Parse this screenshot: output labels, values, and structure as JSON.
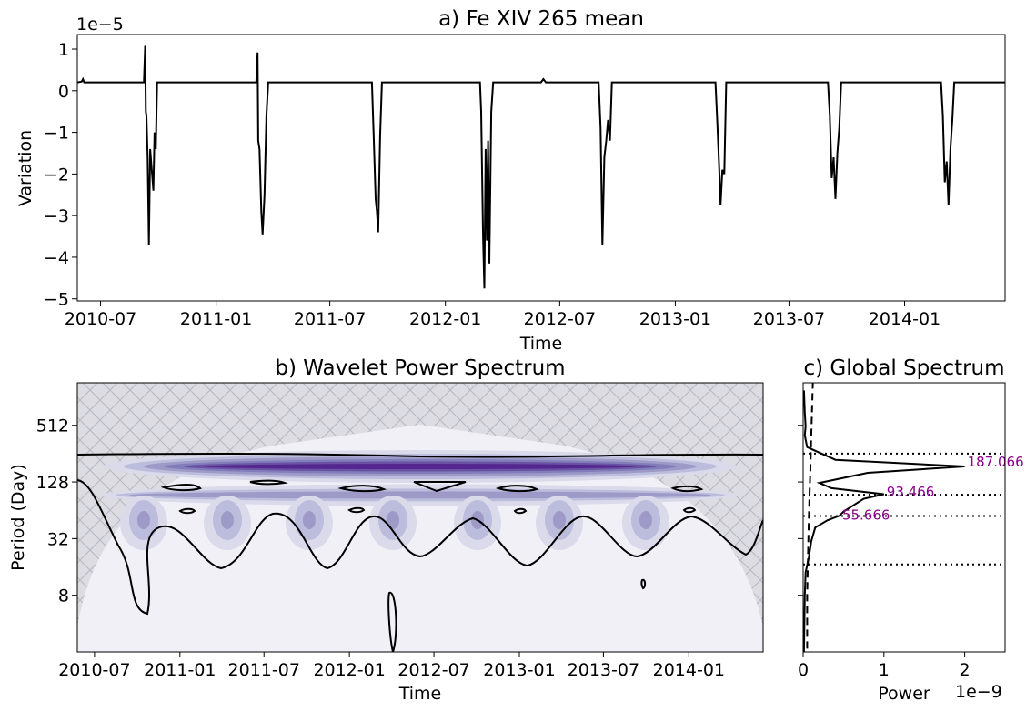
{
  "chart_data": [
    {
      "type": "line",
      "title": "a) Fe XIV 265 mean",
      "xlabel": "Time",
      "ylabel": "Variation",
      "y_offset_text": "1e−5",
      "x_ticks": [
        "2010-07",
        "2011-01",
        "2011-07",
        "2012-01",
        "2012-07",
        "2013-01",
        "2013-07",
        "2014-01"
      ],
      "y_ticks": [
        "1",
        "0",
        "−1",
        "−2",
        "−3",
        "−4",
        "−5"
      ],
      "x_range": [
        "2010-05-25",
        "2014-06-10"
      ],
      "y_range": [
        -5.05,
        1.35
      ],
      "baseline": 0.2,
      "series": [
        {
          "color": "#000000",
          "points": [
            [
              "2010-05-25",
              0.2
            ],
            [
              "2010-06-01",
              0.22
            ],
            [
              "2010-06-03",
              0.28
            ],
            [
              "2010-06-05",
              0.2
            ],
            [
              "2010-09-08",
              0.2
            ],
            [
              "2010-09-10",
              1.08
            ],
            [
              "2010-09-11",
              -0.5
            ],
            [
              "2010-09-12",
              -0.6
            ],
            [
              "2010-09-14",
              -1.6
            ],
            [
              "2010-09-16",
              -3.7
            ],
            [
              "2010-09-18",
              -1.4
            ],
            [
              "2010-09-21",
              -2.0
            ],
            [
              "2010-09-23",
              -2.4
            ],
            [
              "2010-09-25",
              -1.0
            ],
            [
              "2010-09-27",
              -1.4
            ],
            [
              "2010-09-29",
              0.2
            ],
            [
              "2011-03-06",
              0.2
            ],
            [
              "2011-03-08",
              0.92
            ],
            [
              "2011-03-09",
              -1.2
            ],
            [
              "2011-03-11",
              -1.4
            ],
            [
              "2011-03-14",
              -2.9
            ],
            [
              "2011-03-16",
              -3.45
            ],
            [
              "2011-03-19",
              -2.5
            ],
            [
              "2011-03-22",
              -0.6
            ],
            [
              "2011-03-25",
              0.2
            ],
            [
              "2011-09-06",
              0.2
            ],
            [
              "2011-09-09",
              -1.2
            ],
            [
              "2011-09-12",
              -2.6
            ],
            [
              "2011-09-14",
              -2.9
            ],
            [
              "2011-09-16",
              -3.4
            ],
            [
              "2011-09-19",
              -1.1
            ],
            [
              "2011-09-22",
              0.2
            ],
            [
              "2012-02-25",
              0.2
            ],
            [
              "2012-02-27",
              -0.5
            ],
            [
              "2012-03-01",
              -3.5
            ],
            [
              "2012-03-03",
              -4.75
            ],
            [
              "2012-03-05",
              -1.4
            ],
            [
              "2012-03-07",
              -3.6
            ],
            [
              "2012-03-09",
              -1.2
            ],
            [
              "2012-03-11",
              -4.15
            ],
            [
              "2012-03-14",
              -0.5
            ],
            [
              "2012-03-17",
              0.2
            ],
            [
              "2012-06-01",
              0.2
            ],
            [
              "2012-06-05",
              0.28
            ],
            [
              "2012-06-09",
              0.2
            ],
            [
              "2012-09-01",
              0.2
            ],
            [
              "2012-09-04",
              -0.9
            ],
            [
              "2012-09-07",
              -3.7
            ],
            [
              "2012-09-10",
              -1.6
            ],
            [
              "2012-09-13",
              -1.2
            ],
            [
              "2012-09-16",
              -0.7
            ],
            [
              "2012-09-19",
              -1.2
            ],
            [
              "2012-09-22",
              0.2
            ],
            [
              "2013-03-06",
              0.2
            ],
            [
              "2013-03-09",
              -0.8
            ],
            [
              "2013-03-12",
              -1.9
            ],
            [
              "2013-03-14",
              -2.75
            ],
            [
              "2013-03-17",
              -1.9
            ],
            [
              "2013-03-20",
              -2.0
            ],
            [
              "2013-03-23",
              0.2
            ],
            [
              "2013-09-01",
              0.2
            ],
            [
              "2013-09-04",
              -0.6
            ],
            [
              "2013-09-07",
              -2.1
            ],
            [
              "2013-09-10",
              -1.6
            ],
            [
              "2013-09-13",
              -2.6
            ],
            [
              "2013-09-16",
              -1.5
            ],
            [
              "2013-09-19",
              -0.9
            ],
            [
              "2013-09-22",
              0.2
            ],
            [
              "2014-02-28",
              0.2
            ],
            [
              "2014-03-03",
              -0.6
            ],
            [
              "2014-03-06",
              -2.2
            ],
            [
              "2014-03-09",
              -1.7
            ],
            [
              "2014-03-12",
              -2.75
            ],
            [
              "2014-03-15",
              -1.4
            ],
            [
              "2014-03-18",
              -0.7
            ],
            [
              "2014-03-21",
              0.2
            ],
            [
              "2014-06-10",
              0.2
            ]
          ]
        }
      ]
    },
    {
      "type": "heatmap",
      "title": "b) Wavelet Power Spectrum",
      "xlabel": "Time",
      "ylabel": "Period (Day)",
      "x_ticks": [
        "2010-07",
        "2011-01",
        "2011-07",
        "2012-01",
        "2012-07",
        "2013-01",
        "2013-07",
        "2014-01"
      ],
      "y_ticks": [
        "512",
        "128",
        "32",
        "8"
      ],
      "x_range": [
        "2010-05-25",
        "2014-06-10"
      ],
      "y_range_log2": [
        1.0,
        10.5
      ],
      "colormap": [
        "#f2f0f7",
        "#dadaeb",
        "#bcbddc",
        "#9e9ac8",
        "#807dba",
        "#6a51a3",
        "#54278f"
      ],
      "bands": [
        {
          "period": 187,
          "level": 6
        },
        {
          "period": 93,
          "level": 3
        },
        {
          "period": 56,
          "level": 2
        }
      ]
    },
    {
      "type": "line",
      "title": "c) Global Spectrum",
      "xlabel": "Power",
      "x_offset_text": "1e−9",
      "x_ticks": [
        "0",
        "1",
        "2"
      ],
      "x_range": [
        0,
        2.5
      ],
      "peaks": [
        "187.066",
        "93.466",
        "55.666"
      ],
      "peak_periods": [
        187.066,
        93.466,
        55.666
      ],
      "reference_periods": [
        256,
        93.466,
        55.666,
        17
      ],
      "series": [
        {
          "style": "solid",
          "points": [
            [
              0.01,
              1200
            ],
            [
              0.02,
              700
            ],
            [
              0.03,
              500
            ],
            [
              0.02,
              400
            ],
            [
              0.05,
              300
            ],
            [
              0.4,
              220
            ],
            [
              2.0,
              187
            ],
            [
              0.8,
              160
            ],
            [
              0.2,
              125
            ],
            [
              0.35,
              110
            ],
            [
              1.0,
              95
            ],
            [
              0.75,
              85
            ],
            [
              0.5,
              62
            ],
            [
              0.45,
              56
            ],
            [
              0.3,
              50
            ],
            [
              0.15,
              42
            ],
            [
              0.1,
              30
            ],
            [
              0.07,
              20
            ],
            [
              0.03,
              14
            ],
            [
              0.02,
              8
            ],
            [
              0.01,
              2
            ]
          ]
        },
        {
          "style": "dashed",
          "points": [
            [
              0.12,
              1500
            ],
            [
              0.1,
              400
            ],
            [
              0.09,
              180
            ],
            [
              0.08,
              100
            ],
            [
              0.07,
              50
            ],
            [
              0.06,
              20
            ],
            [
              0.05,
              8
            ],
            [
              0.05,
              2
            ]
          ]
        }
      ]
    }
  ]
}
